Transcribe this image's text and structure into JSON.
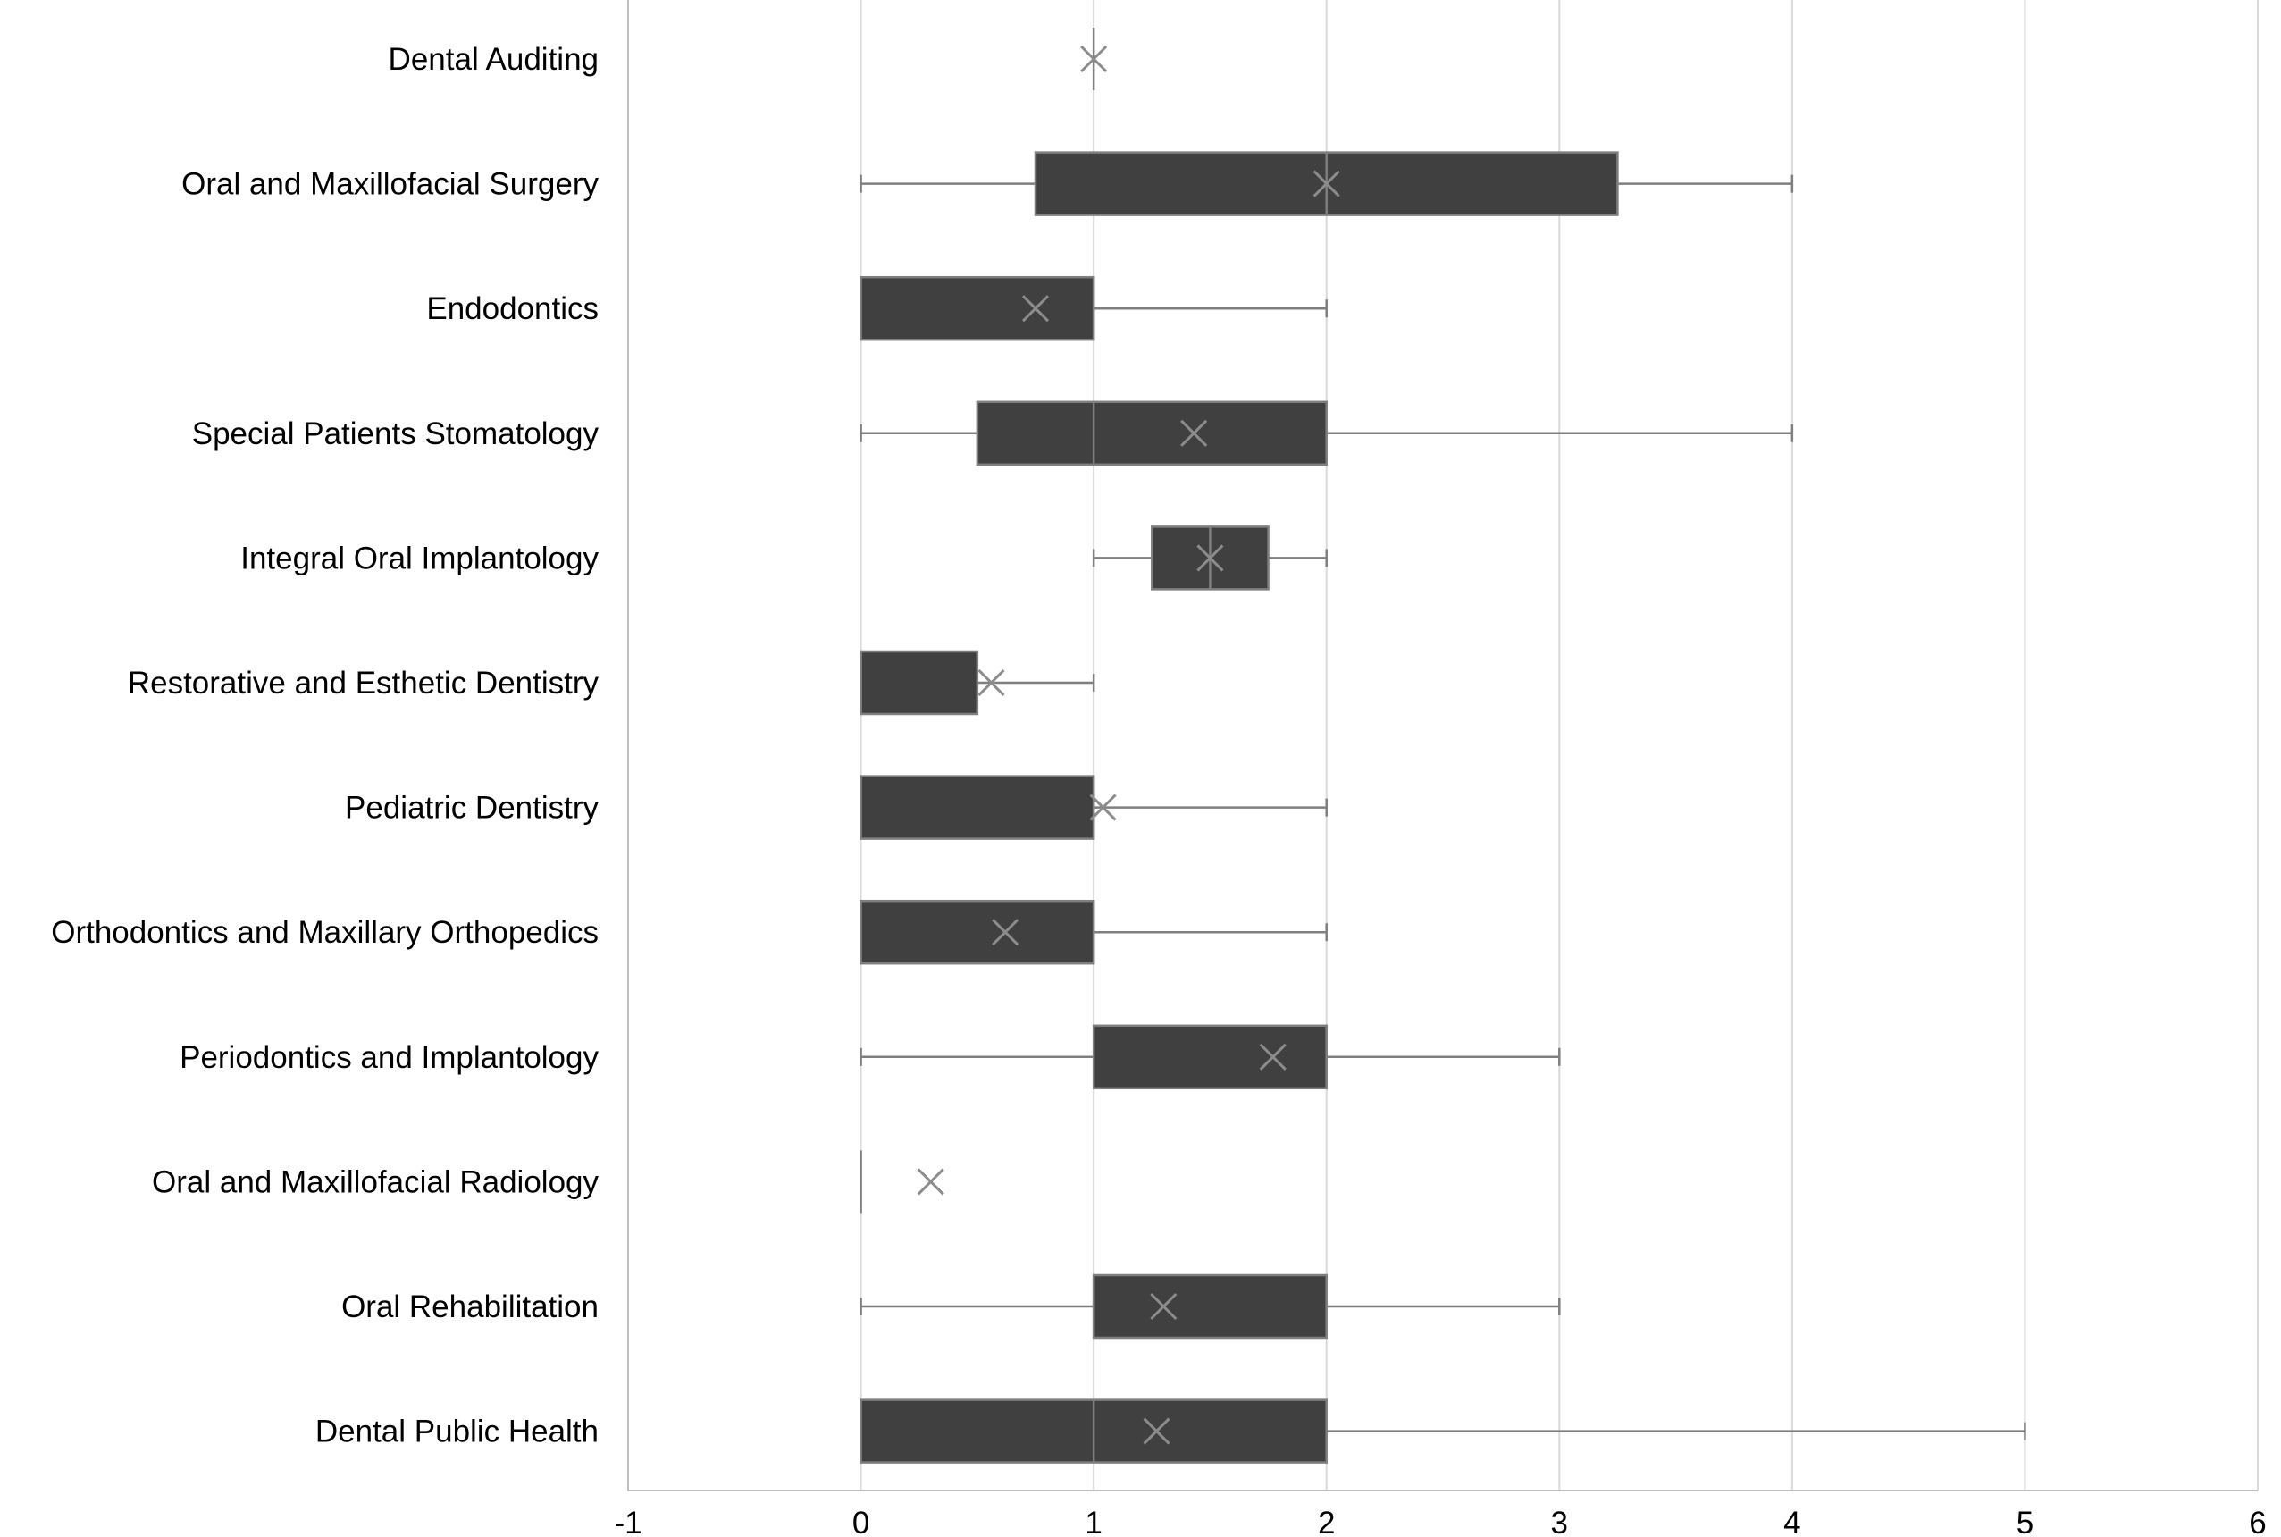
{
  "chart_data": {
    "type": "boxplot",
    "orientation": "horizontal",
    "title": "",
    "xlabel": "",
    "ylabel": "",
    "xlim": [
      -1,
      6
    ],
    "x_ticks": [
      -1,
      0,
      1,
      2,
      3,
      4,
      5,
      6
    ],
    "grid": "vertical gridlines on",
    "legend": "none",
    "marker": "× marks the mean",
    "colors": {
      "box_fill": "#404040",
      "box_edge": "#7f7f7f",
      "whisker": "#7f7f7f",
      "mean_marker": "#8c8c8c",
      "grid": "#d9d9d9",
      "axis": "#bfbfbf"
    },
    "series": [
      {
        "category": "Dental Auditing",
        "min": 1,
        "q1": 1,
        "median": 1,
        "q3": 1,
        "max": 1,
        "mean": 1.0
      },
      {
        "category": "Oral and Maxillofacial Surgery",
        "min": 0,
        "q1": 0.75,
        "median": 2,
        "q3": 3.25,
        "max": 4,
        "mean": 2.0
      },
      {
        "category": "Endodontics",
        "min": 0,
        "q1": 0,
        "median": 1,
        "q3": 1,
        "max": 2,
        "mean": 0.75
      },
      {
        "category": "Special Patients Stomatology",
        "min": 0,
        "q1": 0.5,
        "median": 1,
        "q3": 2,
        "max": 4,
        "mean": 1.43
      },
      {
        "category": "Integral Oral Implantology",
        "min": 1,
        "q1": 1.25,
        "median": 1.5,
        "q3": 1.75,
        "max": 2,
        "mean": 1.5
      },
      {
        "category": "Restorative and Esthetic Dentistry",
        "min": 0,
        "q1": 0,
        "median": 0,
        "q3": 0.5,
        "max": 1,
        "mean": 0.56
      },
      {
        "category": "Pediatric Dentistry",
        "min": 0,
        "q1": 0,
        "median": 1,
        "q3": 1,
        "max": 2,
        "mean": 1.04
      },
      {
        "category": "Orthodontics and Maxillary Orthopedics",
        "min": 0,
        "q1": 0,
        "median": 1,
        "q3": 1,
        "max": 2,
        "mean": 0.62
      },
      {
        "category": "Periodontics and Implantology",
        "min": 0,
        "q1": 1,
        "median": 2,
        "q3": 2,
        "max": 3,
        "mean": 1.77
      },
      {
        "category": "Oral and Maxillofacial Radiology",
        "min": 0,
        "q1": 0,
        "median": 0,
        "q3": 0,
        "max": 0,
        "mean": 0.3
      },
      {
        "category": "Oral Rehabilitation",
        "min": 0,
        "q1": 1,
        "median": 1,
        "q3": 2,
        "max": 3,
        "mean": 1.3
      },
      {
        "category": "Dental Public Health",
        "min": 0,
        "q1": 0,
        "median": 1,
        "q3": 2,
        "max": 5,
        "mean": 1.27
      }
    ]
  }
}
